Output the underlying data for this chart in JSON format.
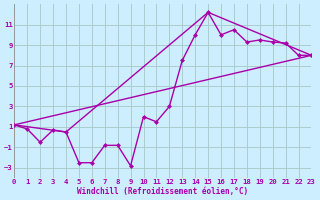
{
  "xlabel": "Windchill (Refroidissement éolien,°C)",
  "bg_color": "#cceeff",
  "grid_color": "#aacccc",
  "line_color": "#aa00aa",
  "xlim": [
    0,
    23
  ],
  "ylim": [
    -4,
    13
  ],
  "yticks": [
    -3,
    -1,
    1,
    3,
    5,
    7,
    9,
    11
  ],
  "xticks": [
    0,
    1,
    2,
    3,
    4,
    5,
    6,
    7,
    8,
    9,
    10,
    11,
    12,
    13,
    14,
    15,
    16,
    17,
    18,
    19,
    20,
    21,
    22,
    23
  ],
  "scatter_x": [
    0,
    1,
    2,
    3,
    4,
    5,
    6,
    7,
    8,
    9,
    10,
    11,
    12,
    13,
    14,
    15,
    16,
    17,
    18,
    19,
    20,
    21,
    22,
    23
  ],
  "scatter_y": [
    1.2,
    0.8,
    -0.5,
    0.7,
    0.5,
    -2.5,
    -2.5,
    -0.8,
    -0.8,
    -2.8,
    2.0,
    1.5,
    3.0,
    7.5,
    10.0,
    12.2,
    10.0,
    10.5,
    9.3,
    9.5,
    9.3,
    9.2,
    8.0,
    8.0
  ],
  "line1_x": [
    0,
    4,
    15,
    23
  ],
  "line1_y": [
    1.2,
    0.5,
    12.2,
    8.0
  ],
  "line2_x": [
    0,
    23
  ],
  "line2_y": [
    1.2,
    8.0
  ]
}
